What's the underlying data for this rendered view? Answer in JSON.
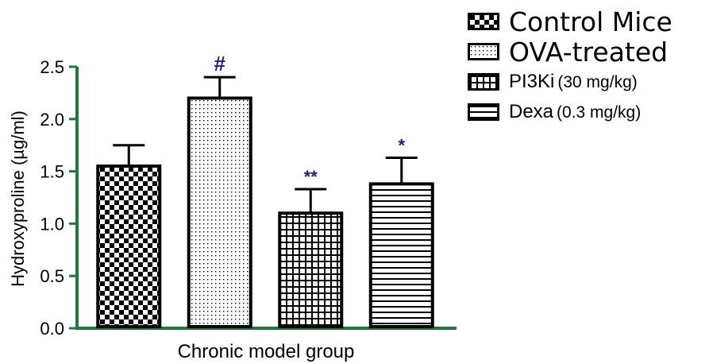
{
  "chart_data": {
    "type": "bar",
    "categories": [
      "Control Mice",
      "OVA-treated",
      "PI3Ki (30 mg/kg)",
      "Dexa (0.3 mg/kg)"
    ],
    "values": [
      1.55,
      2.2,
      1.1,
      1.38
    ],
    "errors": [
      0.2,
      0.2,
      0.23,
      0.25
    ],
    "significance": [
      "",
      "#",
      "**",
      "*"
    ],
    "xlabel": "Chronic model group",
    "ylabel": "Hydroxyproline (µg/ml)",
    "ylim": [
      0,
      2.5
    ],
    "yticks": [
      "0.0",
      "0.5",
      "1.0",
      "1.5",
      "2.0",
      "2.5"
    ],
    "patterns": [
      "checker",
      "dots",
      "grid",
      "hlines"
    ],
    "axis_color": "#1e7a3c",
    "significance_color": "#1a237e",
    "legend_position": "top-right",
    "grid": false
  },
  "legend": {
    "items": [
      {
        "label": "Control Mice",
        "dose": ""
      },
      {
        "label": "OVA-treated",
        "dose": ""
      },
      {
        "label": "PI3Ki",
        "dose": "(30 mg/kg)"
      },
      {
        "label": "Dexa",
        "dose": "(0.3 mg/kg)"
      }
    ]
  }
}
